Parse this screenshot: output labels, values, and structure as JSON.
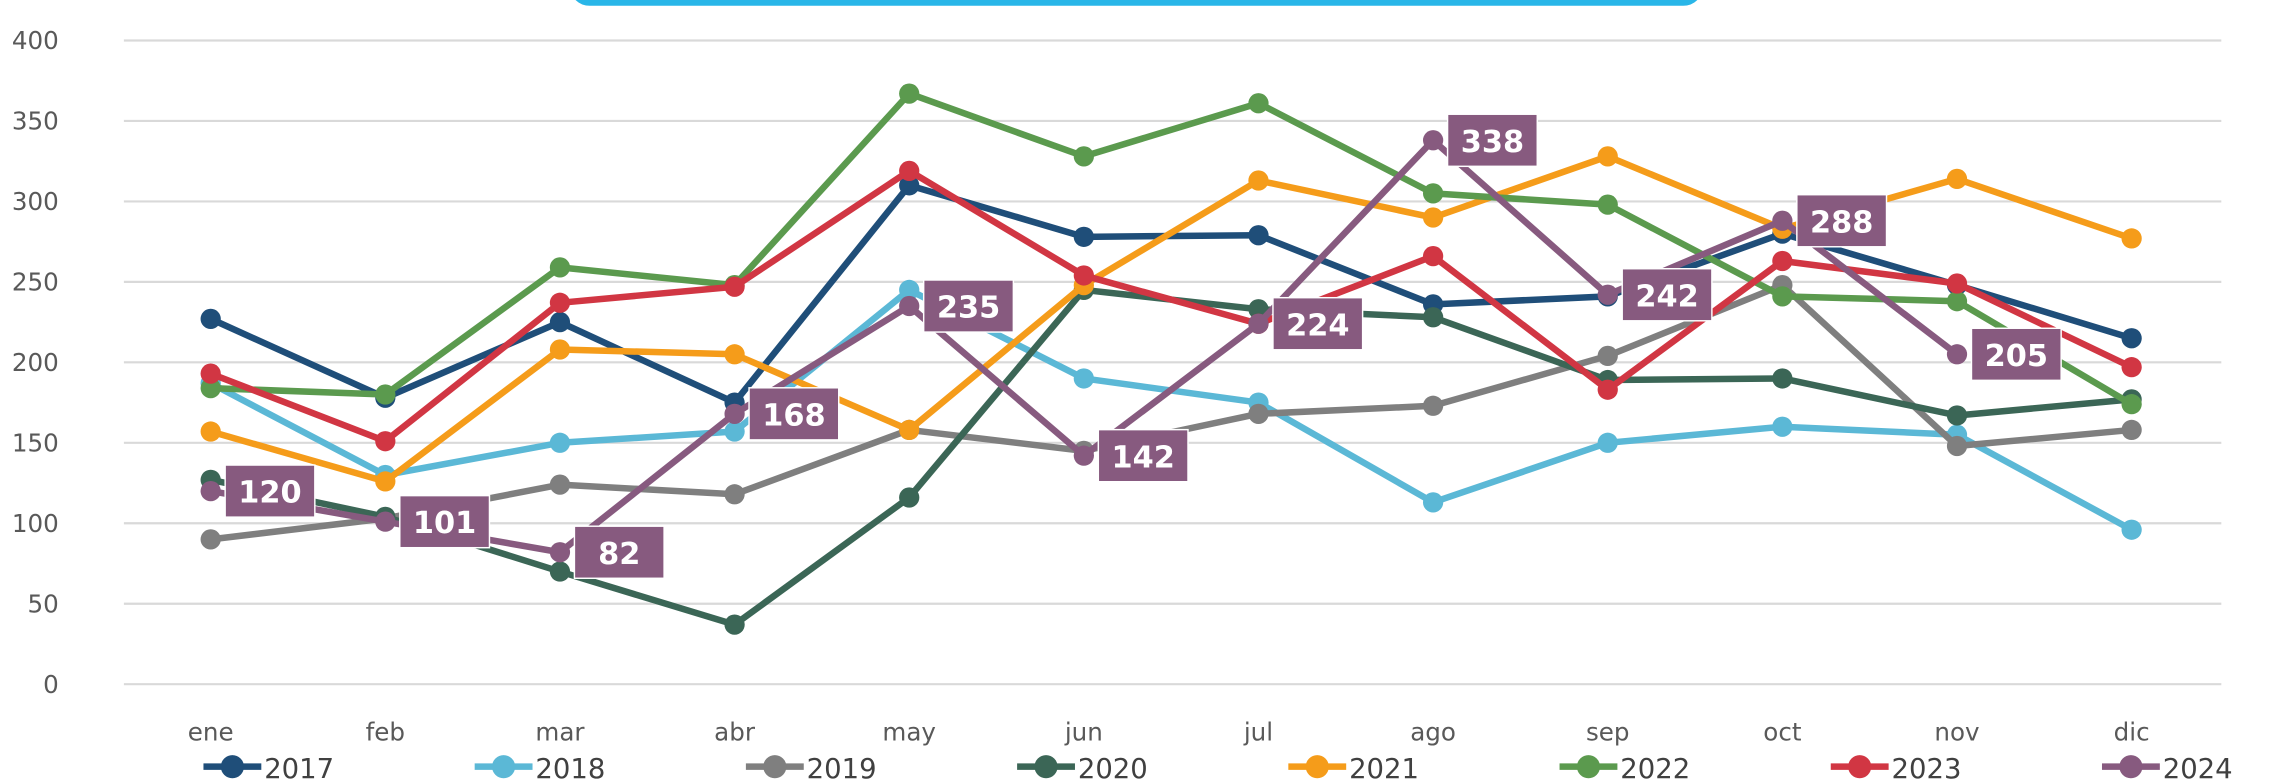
{
  "chart_data": {
    "type": "line",
    "categories": [
      "ene",
      "feb",
      "mar",
      "abr",
      "may",
      "jun",
      "jul",
      "ago",
      "sep",
      "oct",
      "nov",
      "dic"
    ],
    "series": [
      {
        "name": "2017",
        "color": "#1f4e79",
        "values": [
          227,
          178,
          225,
          175,
          310,
          278,
          279,
          236,
          241,
          280,
          248,
          215
        ]
      },
      {
        "name": "2018",
        "color": "#5bb8d6",
        "values": [
          187,
          130,
          150,
          157,
          245,
          190,
          175,
          113,
          150,
          160,
          155,
          96
        ]
      },
      {
        "name": "2019",
        "color": "#7f7f7f",
        "values": [
          90,
          103,
          124,
          118,
          158,
          145,
          168,
          173,
          204,
          248,
          148,
          158
        ]
      },
      {
        "name": "2020",
        "color": "#3b6656",
        "values": [
          127,
          104,
          70,
          37,
          116,
          245,
          233,
          228,
          189,
          190,
          167,
          177
        ]
      },
      {
        "name": "2021",
        "color": "#f59c1a",
        "values": [
          157,
          126,
          208,
          205,
          158,
          248,
          313,
          290,
          328,
          283,
          314,
          277
        ]
      },
      {
        "name": "2022",
        "color": "#5b9a4e",
        "values": [
          184,
          180,
          259,
          248,
          367,
          328,
          361,
          305,
          298,
          241,
          238,
          174
        ]
      },
      {
        "name": "2023",
        "color": "#d13643",
        "values": [
          193,
          151,
          237,
          247,
          319,
          254,
          224,
          266,
          183,
          263,
          249,
          197
        ]
      },
      {
        "name": "2024",
        "color": "#875a7f",
        "values": [
          120,
          101,
          82,
          168,
          235,
          142,
          224,
          338,
          242,
          288,
          205,
          null
        ],
        "data_labels": true
      }
    ],
    "ylim": [
      0,
      400
    ],
    "yticks": [
      0,
      50,
      100,
      150,
      200,
      250,
      300,
      350,
      400
    ],
    "grid": true,
    "legend": "bottom"
  }
}
